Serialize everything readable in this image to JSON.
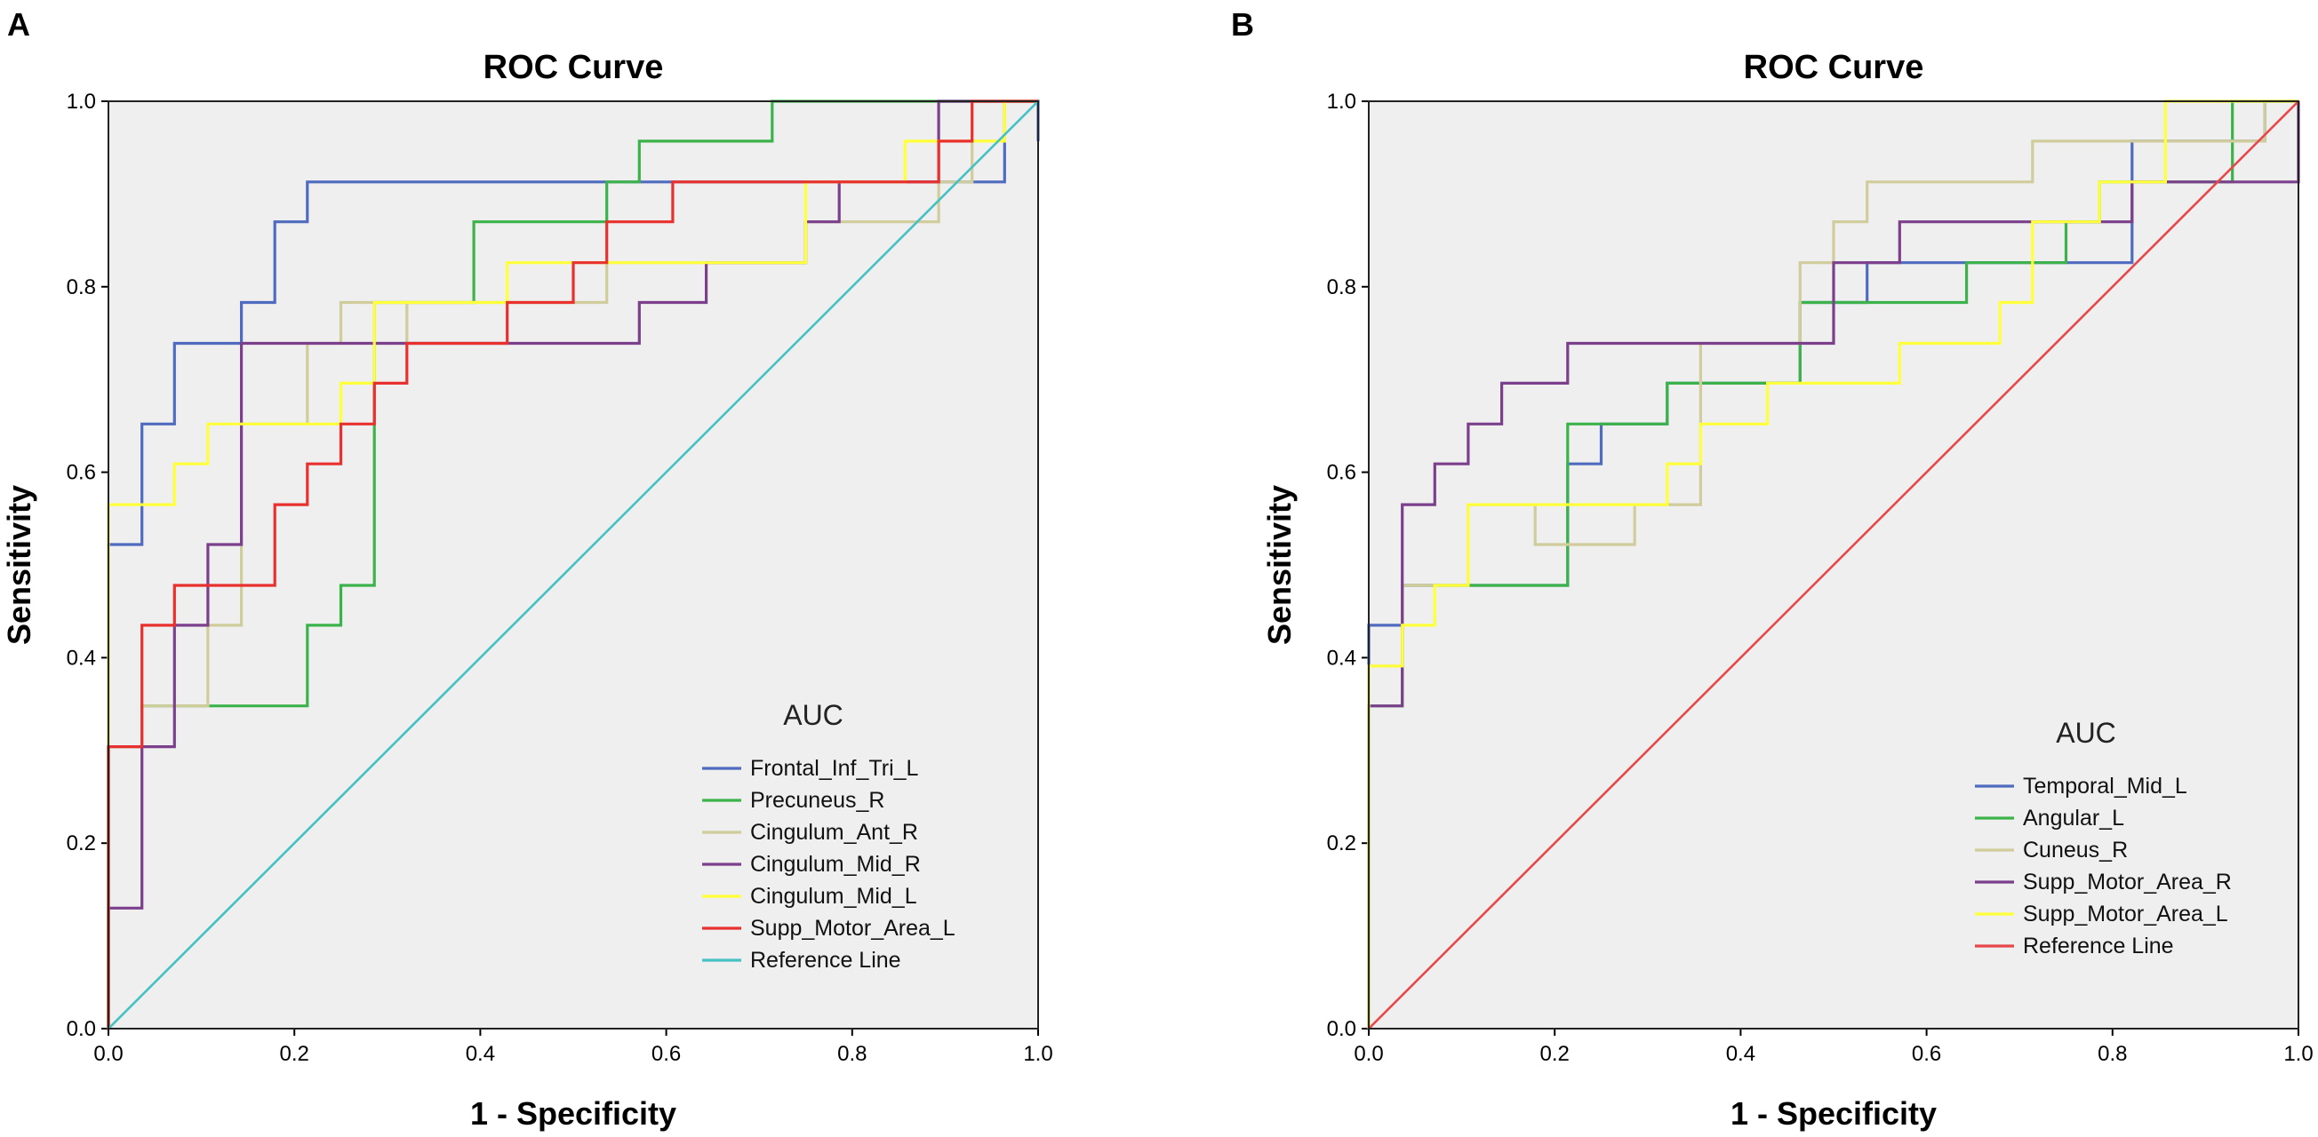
{
  "chart_data": [
    {
      "panel": "A",
      "type": "line",
      "title": "ROC Curve",
      "xlabel": "1 - Specificity",
      "ylabel": "Sensitivity",
      "xlim": [
        0,
        1
      ],
      "ylim": [
        0,
        1
      ],
      "xticks": [
        "0.0",
        "0.2",
        "0.4",
        "0.6",
        "0.8",
        "1.0"
      ],
      "yticks": [
        "0.0",
        "0.2",
        "0.4",
        "0.6",
        "0.8",
        "1.0"
      ],
      "legend_title": "AUC",
      "legend_position": "bottom-right",
      "series": [
        {
          "name": "Frontal_Inf_Tri_L",
          "color": "#4F6BBF",
          "points": [
            [
              0,
              0
            ],
            [
              0,
              0.522
            ],
            [
              0.036,
              0.522
            ],
            [
              0.036,
              0.652
            ],
            [
              0.071,
              0.652
            ],
            [
              0.071,
              0.739
            ],
            [
              0.143,
              0.739
            ],
            [
              0.143,
              0.783
            ],
            [
              0.179,
              0.783
            ],
            [
              0.179,
              0.87
            ],
            [
              0.214,
              0.87
            ],
            [
              0.214,
              0.913
            ],
            [
              0.964,
              0.913
            ],
            [
              0.964,
              1.0
            ],
            [
              1.0,
              1.0
            ],
            [
              1.0,
              0.957
            ]
          ]
        },
        {
          "name": "Precuneus_R",
          "color": "#3CB34A",
          "points": [
            [
              0,
              0
            ],
            [
              0,
              0.304
            ],
            [
              0.036,
              0.304
            ],
            [
              0.036,
              0.348
            ],
            [
              0.214,
              0.348
            ],
            [
              0.214,
              0.435
            ],
            [
              0.25,
              0.435
            ],
            [
              0.25,
              0.478
            ],
            [
              0.286,
              0.478
            ],
            [
              0.286,
              0.783
            ],
            [
              0.393,
              0.783
            ],
            [
              0.393,
              0.87
            ],
            [
              0.536,
              0.87
            ],
            [
              0.536,
              0.913
            ],
            [
              0.571,
              0.913
            ],
            [
              0.571,
              0.957
            ],
            [
              0.714,
              0.957
            ],
            [
              0.714,
              1.0
            ],
            [
              1.0,
              1.0
            ]
          ]
        },
        {
          "name": "Cingulum_Ant_R",
          "color": "#D1CC9C",
          "points": [
            [
              0,
              0
            ],
            [
              0,
              0.304
            ],
            [
              0.036,
              0.304
            ],
            [
              0.036,
              0.348
            ],
            [
              0.107,
              0.348
            ],
            [
              0.107,
              0.435
            ],
            [
              0.143,
              0.435
            ],
            [
              0.143,
              0.652
            ],
            [
              0.214,
              0.652
            ],
            [
              0.214,
              0.739
            ],
            [
              0.25,
              0.739
            ],
            [
              0.25,
              0.783
            ],
            [
              0.286,
              0.783
            ],
            [
              0.286,
              0.739
            ],
            [
              0.321,
              0.739
            ],
            [
              0.321,
              0.783
            ],
            [
              0.536,
              0.783
            ],
            [
              0.536,
              0.826
            ],
            [
              0.75,
              0.826
            ],
            [
              0.75,
              0.87
            ],
            [
              0.893,
              0.87
            ],
            [
              0.893,
              0.913
            ],
            [
              0.929,
              0.913
            ],
            [
              0.929,
              0.957
            ],
            [
              0.964,
              0.957
            ],
            [
              0.964,
              1.0
            ],
            [
              1.0,
              1.0
            ]
          ]
        },
        {
          "name": "Cingulum_Mid_R",
          "color": "#7B3F8C",
          "points": [
            [
              0,
              0
            ],
            [
              0,
              0.13
            ],
            [
              0.036,
              0.13
            ],
            [
              0.036,
              0.304
            ],
            [
              0.071,
              0.304
            ],
            [
              0.071,
              0.435
            ],
            [
              0.107,
              0.435
            ],
            [
              0.107,
              0.522
            ],
            [
              0.143,
              0.522
            ],
            [
              0.143,
              0.739
            ],
            [
              0.571,
              0.739
            ],
            [
              0.571,
              0.783
            ],
            [
              0.643,
              0.783
            ],
            [
              0.643,
              0.826
            ],
            [
              0.75,
              0.826
            ],
            [
              0.75,
              0.87
            ],
            [
              0.786,
              0.87
            ],
            [
              0.786,
              0.913
            ],
            [
              0.893,
              0.913
            ],
            [
              0.893,
              1.0
            ],
            [
              1.0,
              1.0
            ]
          ]
        },
        {
          "name": "Cingulum_Mid_L",
          "color": "#FFFF3A",
          "points": [
            [
              0,
              0
            ],
            [
              0,
              0.565
            ],
            [
              0.071,
              0.565
            ],
            [
              0.071,
              0.609
            ],
            [
              0.107,
              0.609
            ],
            [
              0.107,
              0.652
            ],
            [
              0.25,
              0.652
            ],
            [
              0.25,
              0.696
            ],
            [
              0.286,
              0.696
            ],
            [
              0.286,
              0.783
            ],
            [
              0.429,
              0.783
            ],
            [
              0.429,
              0.826
            ],
            [
              0.75,
              0.826
            ],
            [
              0.75,
              0.913
            ],
            [
              0.857,
              0.913
            ],
            [
              0.857,
              0.957
            ],
            [
              0.964,
              0.957
            ],
            [
              0.964,
              1.0
            ],
            [
              1.0,
              1.0
            ]
          ]
        },
        {
          "name": "Supp_Motor_Area_L",
          "color": "#E8302E",
          "points": [
            [
              0,
              0
            ],
            [
              0,
              0.304
            ],
            [
              0.036,
              0.304
            ],
            [
              0.036,
              0.435
            ],
            [
              0.071,
              0.435
            ],
            [
              0.071,
              0.478
            ],
            [
              0.179,
              0.478
            ],
            [
              0.179,
              0.565
            ],
            [
              0.214,
              0.565
            ],
            [
              0.214,
              0.609
            ],
            [
              0.25,
              0.609
            ],
            [
              0.25,
              0.652
            ],
            [
              0.286,
              0.652
            ],
            [
              0.286,
              0.696
            ],
            [
              0.321,
              0.696
            ],
            [
              0.321,
              0.739
            ],
            [
              0.429,
              0.739
            ],
            [
              0.429,
              0.783
            ],
            [
              0.5,
              0.783
            ],
            [
              0.5,
              0.826
            ],
            [
              0.536,
              0.826
            ],
            [
              0.536,
              0.87
            ],
            [
              0.607,
              0.87
            ],
            [
              0.607,
              0.913
            ],
            [
              0.893,
              0.913
            ],
            [
              0.893,
              0.957
            ],
            [
              0.929,
              0.957
            ],
            [
              0.929,
              1.0
            ],
            [
              1.0,
              1.0
            ]
          ]
        },
        {
          "name": "Reference Line",
          "color": "#45C1C4",
          "points": [
            [
              0,
              0
            ],
            [
              1,
              1
            ]
          ]
        }
      ]
    },
    {
      "panel": "B",
      "type": "line",
      "title": "ROC Curve",
      "xlabel": "1 - Specificity",
      "ylabel": "Sensitivity",
      "xlim": [
        0,
        1
      ],
      "ylim": [
        0,
        1
      ],
      "xticks": [
        "0.0",
        "0.2",
        "0.4",
        "0.6",
        "0.8",
        "1.0"
      ],
      "yticks": [
        "0.0",
        "0.2",
        "0.4",
        "0.6",
        "0.8",
        "1.0"
      ],
      "legend_title": "AUC",
      "legend_position": "bottom-right",
      "series": [
        {
          "name": "Temporal_Mid_L",
          "color": "#4F6BBF",
          "points": [
            [
              0,
              0
            ],
            [
              0,
              0.435
            ],
            [
              0.036,
              0.435
            ],
            [
              0.036,
              0.478
            ],
            [
              0.214,
              0.478
            ],
            [
              0.214,
              0.609
            ],
            [
              0.25,
              0.609
            ],
            [
              0.25,
              0.652
            ],
            [
              0.321,
              0.652
            ],
            [
              0.321,
              0.696
            ],
            [
              0.464,
              0.696
            ],
            [
              0.464,
              0.783
            ],
            [
              0.536,
              0.783
            ],
            [
              0.536,
              0.826
            ],
            [
              0.821,
              0.826
            ],
            [
              0.821,
              0.957
            ],
            [
              0.964,
              0.957
            ],
            [
              0.964,
              1.0
            ],
            [
              1.0,
              1.0
            ]
          ]
        },
        {
          "name": "Angular_L",
          "color": "#3CB34A",
          "points": [
            [
              0,
              0
            ],
            [
              0,
              0.348
            ],
            [
              0.036,
              0.348
            ],
            [
              0.036,
              0.478
            ],
            [
              0.214,
              0.478
            ],
            [
              0.214,
              0.652
            ],
            [
              0.321,
              0.652
            ],
            [
              0.321,
              0.696
            ],
            [
              0.464,
              0.696
            ],
            [
              0.464,
              0.783
            ],
            [
              0.643,
              0.783
            ],
            [
              0.643,
              0.826
            ],
            [
              0.75,
              0.826
            ],
            [
              0.75,
              0.87
            ],
            [
              0.786,
              0.87
            ],
            [
              0.786,
              0.913
            ],
            [
              0.929,
              0.913
            ],
            [
              0.929,
              1.0
            ],
            [
              1.0,
              1.0
            ]
          ]
        },
        {
          "name": "Cuneus_R",
          "color": "#D1CC9C",
          "points": [
            [
              0,
              0
            ],
            [
              0,
              0.391
            ],
            [
              0.036,
              0.391
            ],
            [
              0.036,
              0.478
            ],
            [
              0.107,
              0.478
            ],
            [
              0.107,
              0.565
            ],
            [
              0.179,
              0.565
            ],
            [
              0.179,
              0.522
            ],
            [
              0.286,
              0.522
            ],
            [
              0.286,
              0.565
            ],
            [
              0.357,
              0.565
            ],
            [
              0.357,
              0.739
            ],
            [
              0.464,
              0.739
            ],
            [
              0.464,
              0.826
            ],
            [
              0.5,
              0.826
            ],
            [
              0.5,
              0.87
            ],
            [
              0.536,
              0.87
            ],
            [
              0.536,
              0.913
            ],
            [
              0.714,
              0.913
            ],
            [
              0.714,
              0.957
            ],
            [
              0.964,
              0.957
            ],
            [
              0.964,
              1.0
            ],
            [
              1.0,
              1.0
            ]
          ]
        },
        {
          "name": "Supp_Motor_Area_R",
          "color": "#7B3F8C",
          "points": [
            [
              0,
              0
            ],
            [
              0,
              0.348
            ],
            [
              0.036,
              0.348
            ],
            [
              0.036,
              0.565
            ],
            [
              0.071,
              0.565
            ],
            [
              0.071,
              0.609
            ],
            [
              0.107,
              0.609
            ],
            [
              0.107,
              0.652
            ],
            [
              0.143,
              0.652
            ],
            [
              0.143,
              0.696
            ],
            [
              0.214,
              0.696
            ],
            [
              0.214,
              0.739
            ],
            [
              0.5,
              0.739
            ],
            [
              0.5,
              0.826
            ],
            [
              0.571,
              0.826
            ],
            [
              0.571,
              0.87
            ],
            [
              0.821,
              0.87
            ],
            [
              0.821,
              0.913
            ],
            [
              1.0,
              0.913
            ],
            [
              1.0,
              1.0
            ]
          ]
        },
        {
          "name": "Supp_Motor_Area_L",
          "color": "#FFFF3A",
          "points": [
            [
              0,
              0
            ],
            [
              0,
              0.391
            ],
            [
              0.036,
              0.391
            ],
            [
              0.036,
              0.435
            ],
            [
              0.071,
              0.435
            ],
            [
              0.071,
              0.478
            ],
            [
              0.107,
              0.478
            ],
            [
              0.107,
              0.565
            ],
            [
              0.321,
              0.565
            ],
            [
              0.321,
              0.609
            ],
            [
              0.357,
              0.609
            ],
            [
              0.357,
              0.652
            ],
            [
              0.429,
              0.652
            ],
            [
              0.429,
              0.696
            ],
            [
              0.571,
              0.696
            ],
            [
              0.571,
              0.739
            ],
            [
              0.679,
              0.739
            ],
            [
              0.679,
              0.783
            ],
            [
              0.714,
              0.783
            ],
            [
              0.714,
              0.87
            ],
            [
              0.786,
              0.87
            ],
            [
              0.786,
              0.913
            ],
            [
              0.857,
              0.913
            ],
            [
              0.857,
              1.0
            ],
            [
              1.0,
              1.0
            ]
          ]
        },
        {
          "name": "Reference Line",
          "color": "#E8474A",
          "points": [
            [
              0,
              0
            ],
            [
              1,
              1
            ]
          ]
        }
      ]
    }
  ]
}
